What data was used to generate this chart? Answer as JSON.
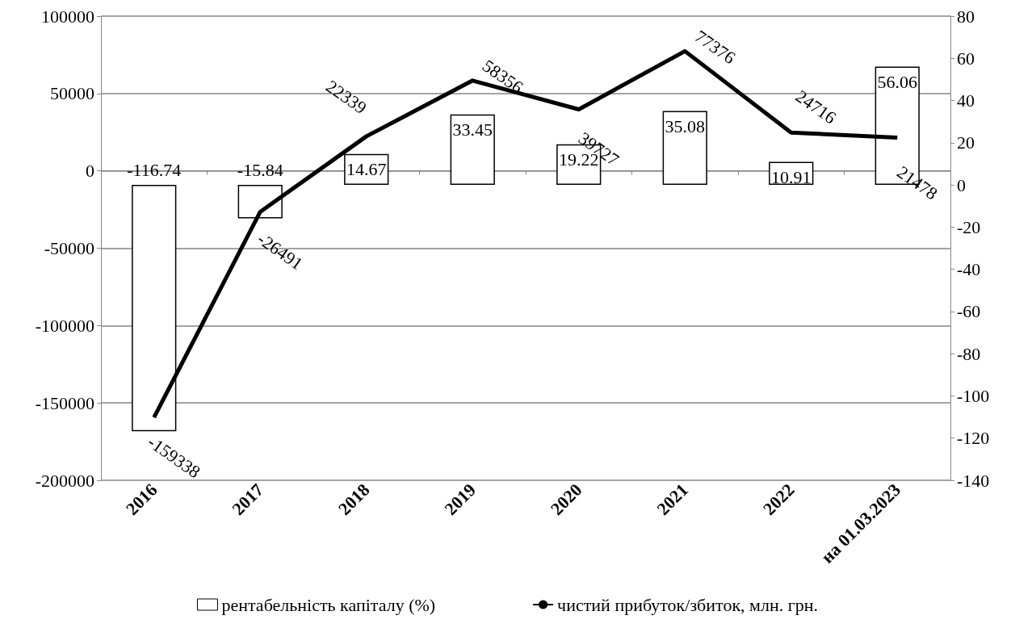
{
  "chart_data": {
    "type": "bar",
    "categories": [
      "2016",
      "2017",
      "2018",
      "2019",
      "2020",
      "2021",
      "2022",
      "на 01.03.2023"
    ],
    "series": [
      {
        "name": "рентабельність капіталу (%)",
        "type": "bar",
        "axis": "y2",
        "color": "#ffffff",
        "values": [
          -116.74,
          -15.84,
          14.67,
          33.45,
          19.22,
          35.08,
          10.91,
          56.06
        ]
      },
      {
        "name": "чистий прибуток/збиток, млн. грн.",
        "type": "line",
        "color": "#000000",
        "values": [
          -159338,
          -26491,
          22339,
          58356,
          39727,
          77376,
          24716,
          21478
        ]
      }
    ],
    "ylim": [
      -200000,
      100000
    ],
    "yticks": [
      -200000,
      -150000,
      -100000,
      -50000,
      0,
      50000,
      100000
    ],
    "y2lim": [
      -140,
      80
    ],
    "y2ticks": [
      -140,
      -120,
      -100,
      -80,
      -60,
      -40,
      -20,
      0,
      20,
      40,
      60,
      80
    ],
    "grid": "y",
    "legend": "bottom",
    "data_labels": true,
    "marker": "none"
  }
}
